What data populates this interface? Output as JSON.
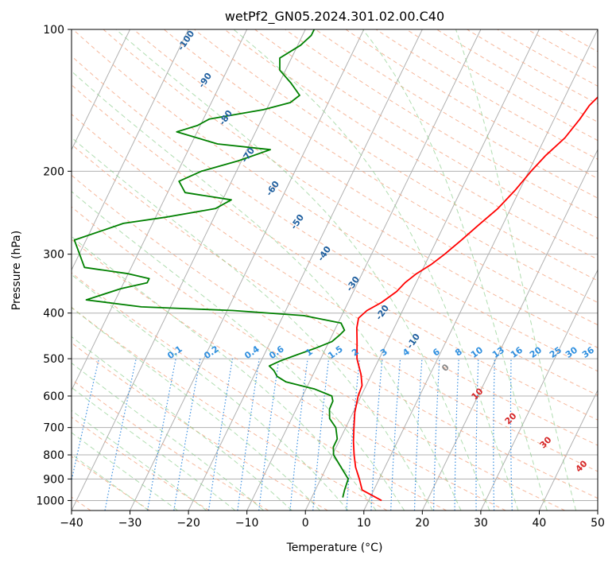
{
  "chart_data": {
    "type": "line",
    "title": "wetPf2_GN05.2024.301.02.00.C40",
    "xlabel": "Temperature (°C)",
    "ylabel": "Pressure (hPa)",
    "xlim": [
      -40,
      50
    ],
    "ylim": [
      1050,
      100
    ],
    "y_scale": "log",
    "grid": true,
    "x_ticks": [
      -40,
      -30,
      -20,
      -10,
      0,
      10,
      20,
      30,
      40,
      50
    ],
    "x_tick_labels": [
      "−40",
      "−30",
      "−20",
      "−10",
      "0",
      "10",
      "20",
      "30",
      "40",
      "50"
    ],
    "y_ticks": [
      100,
      200,
      300,
      400,
      500,
      600,
      700,
      800,
      900,
      1000
    ],
    "y_tick_labels": [
      "100",
      "200",
      "300",
      "400",
      "500",
      "600",
      "700",
      "800",
      "900",
      "1000"
    ],
    "series": [
      {
        "role": "temperature",
        "color": "#ff0000",
        "points": [
          [
            1000,
            12.2
          ],
          [
            950,
            8.0
          ],
          [
            900,
            6.6
          ],
          [
            850,
            5.0
          ],
          [
            800,
            3.7
          ],
          [
            750,
            2.5
          ],
          [
            700,
            1.4
          ],
          [
            650,
            0.3
          ],
          [
            600,
            -0.5
          ],
          [
            570,
            -0.7
          ],
          [
            540,
            -1.8
          ],
          [
            500,
            -3.8
          ],
          [
            460,
            -5.2
          ],
          [
            430,
            -6.4
          ],
          [
            410,
            -6.9
          ],
          [
            395,
            -6.1
          ],
          [
            380,
            -4.3
          ],
          [
            360,
            -2.6
          ],
          [
            345,
            -1.9
          ],
          [
            330,
            -0.7
          ],
          [
            315,
            1.1
          ],
          [
            300,
            2.5
          ],
          [
            280,
            4.2
          ],
          [
            260,
            5.9
          ],
          [
            240,
            7.8
          ],
          [
            220,
            9.2
          ],
          [
            200,
            10.4
          ],
          [
            185,
            11.6
          ],
          [
            170,
            13.4
          ],
          [
            155,
            14.4
          ],
          [
            145,
            14.9
          ],
          [
            135,
            16.2
          ],
          [
            125,
            18.4
          ],
          [
            115,
            20.3
          ],
          [
            108,
            21.5
          ],
          [
            100,
            22.6
          ]
        ]
      },
      {
        "role": "dewpoint",
        "color": "#008000",
        "points": [
          [
            985,
            5.3
          ],
          [
            950,
            5.0
          ],
          [
            900,
            4.7
          ],
          [
            850,
            2.5
          ],
          [
            800,
            0.2
          ],
          [
            770,
            -0.5
          ],
          [
            740,
            -0.5
          ],
          [
            700,
            -1.7
          ],
          [
            670,
            -3.5
          ],
          [
            640,
            -4.3
          ],
          [
            615,
            -4.4
          ],
          [
            600,
            -5.0
          ],
          [
            580,
            -8.5
          ],
          [
            560,
            -14.0
          ],
          [
            545,
            -16.0
          ],
          [
            530,
            -17.0
          ],
          [
            518,
            -18.2
          ],
          [
            505,
            -16.7
          ],
          [
            490,
            -14.3
          ],
          [
            475,
            -11.8
          ],
          [
            460,
            -9.5
          ],
          [
            445,
            -8.7
          ],
          [
            435,
            -8.3
          ],
          [
            420,
            -9.5
          ],
          [
            405,
            -16.5
          ],
          [
            395,
            -29.0
          ],
          [
            388,
            -45.0
          ],
          [
            375,
            -55.0
          ],
          [
            355,
            -50.0
          ],
          [
            345,
            -46.0
          ],
          [
            338,
            -46.0
          ],
          [
            330,
            -50.0
          ],
          [
            320,
            -58.0
          ],
          [
            280,
            -62.0
          ],
          [
            258,
            -55.0
          ],
          [
            250,
            -48.0
          ],
          [
            240,
            -40.5
          ],
          [
            230,
            -38.5
          ],
          [
            222,
            -47.0
          ],
          [
            210,
            -49.0
          ],
          [
            200,
            -46.0
          ],
          [
            190,
            -40.5
          ],
          [
            180,
            -36.0
          ],
          [
            175,
            -45.5
          ],
          [
            165,
            -53.5
          ],
          [
            160,
            -50.5
          ],
          [
            155,
            -49.0
          ],
          [
            148,
            -40.5
          ],
          [
            143,
            -36.5
          ],
          [
            138,
            -35.5
          ],
          [
            130,
            -38.0
          ],
          [
            122,
            -41.0
          ],
          [
            115,
            -42.0
          ],
          [
            108,
            -39.5
          ],
          [
            103,
            -38.5
          ],
          [
            100,
            -38.5
          ]
        ]
      }
    ],
    "dry_adiabat_labels": [
      "-100",
      "-90",
      "-80",
      "-70",
      "-60",
      "-50",
      "-40",
      "-30",
      "-20",
      "-10"
    ],
    "dry_adiabat_label_color": "#1f5f9f",
    "moist_adiabat_labels": [
      "0",
      "10",
      "20",
      "30",
      "40"
    ],
    "mixing_ratio_labels": [
      "0.1",
      "0.2",
      "0.4",
      "0.6",
      "1",
      "1.5",
      "2",
      "3",
      "4",
      "6",
      "8",
      "10",
      "13",
      "16",
      "20",
      "25",
      "30",
      "36"
    ],
    "mixing_ratio_label_color": "#2f8fdf"
  }
}
